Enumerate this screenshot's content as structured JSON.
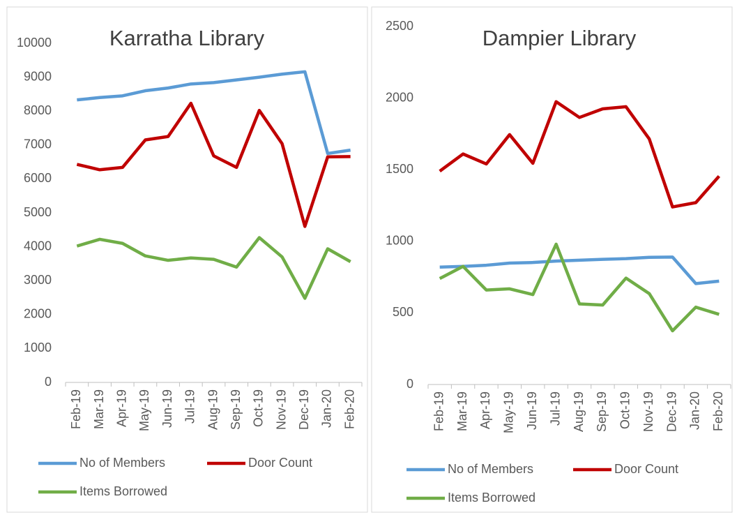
{
  "chart_data": [
    {
      "type": "line",
      "title": "Karratha Library",
      "categories": [
        "Feb-19",
        "Mar-19",
        "Apr-19",
        "May-19",
        "Jun-19",
        "Jul-19",
        "Aug-19",
        "Sep-19",
        "Oct-19",
        "Nov-19",
        "Dec-19",
        "Jan-20",
        "Feb-20"
      ],
      "series": [
        {
          "name": "No of Members",
          "color": "#5b9bd5",
          "values": [
            8330,
            8400,
            8450,
            8600,
            8680,
            8800,
            8840,
            8920,
            9000,
            9090,
            9160,
            6750,
            6850
          ]
        },
        {
          "name": "Door Count",
          "color": "#c00000",
          "values": [
            6430,
            6270,
            6340,
            7150,
            7250,
            8230,
            6680,
            6340,
            8020,
            7040,
            4600,
            6650,
            6660
          ]
        },
        {
          "name": "Items Borrowed",
          "color": "#70ad47",
          "values": [
            4020,
            4220,
            4100,
            3730,
            3600,
            3670,
            3630,
            3400,
            4270,
            3700,
            2480,
            3940,
            3560
          ]
        }
      ],
      "ylim": [
        0,
        10000
      ],
      "yticks": [
        0,
        1000,
        2000,
        3000,
        4000,
        5000,
        6000,
        7000,
        8000,
        9000,
        10000
      ],
      "grid": false,
      "legend": "bottom"
    },
    {
      "type": "line",
      "title": "Dampier Library",
      "categories": [
        "Feb-19",
        "Mar-19",
        "Apr-19",
        "May-19",
        "Jun-19",
        "Jul-19",
        "Aug-19",
        "Sep-19",
        "Oct-19",
        "Nov-19",
        "Dec-19",
        "Jan-20",
        "Feb-20"
      ],
      "series": [
        {
          "name": "No of Members",
          "color": "#5b9bd5",
          "values": [
            820,
            825,
            833,
            848,
            852,
            862,
            868,
            874,
            879,
            888,
            890,
            705,
            722
          ]
        },
        {
          "name": "Door Count",
          "color": "#c00000",
          "values": [
            1490,
            1610,
            1540,
            1745,
            1545,
            1975,
            1865,
            1925,
            1940,
            1715,
            1240,
            1270,
            1455
          ]
        },
        {
          "name": "Items Borrowed",
          "color": "#70ad47",
          "values": [
            740,
            825,
            660,
            668,
            628,
            980,
            563,
            555,
            743,
            635,
            375,
            540,
            490
          ]
        }
      ],
      "ylim": [
        0,
        2500
      ],
      "yticks": [
        0,
        500,
        1000,
        1500,
        2000,
        2500
      ],
      "grid": false,
      "legend": "bottom"
    }
  ]
}
